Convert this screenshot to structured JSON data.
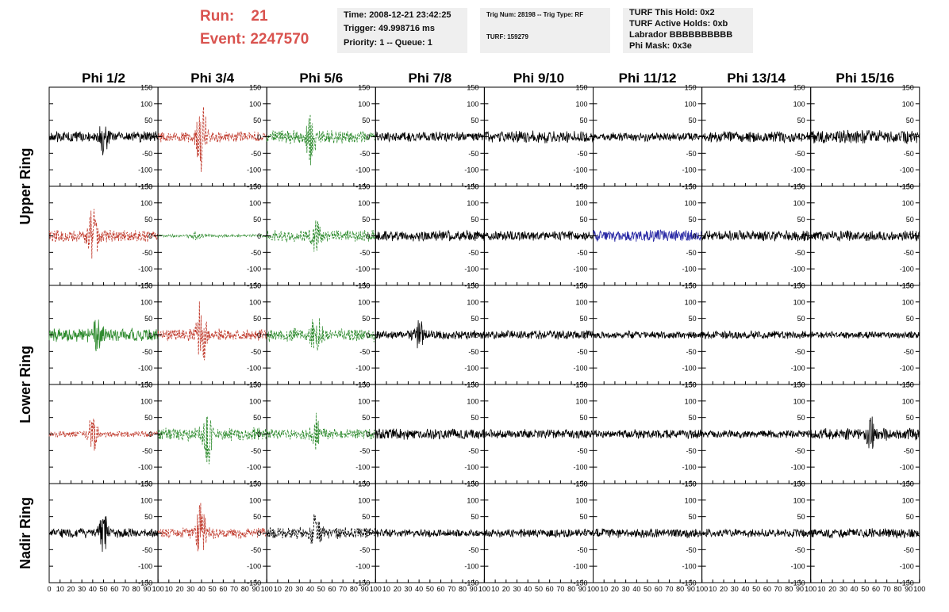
{
  "header": {
    "run_label": "Run:",
    "run_value": "21",
    "event_label": "Event:",
    "event_value": "2247570",
    "accent_color": "#d9534f",
    "time_line": "Time: 2008-12-21 23:42:25",
    "trigger_line": "Trigger: 49.998716 ms",
    "priority_line": "Priority: 1 -- Queue: 1",
    "trig_line": "Trig Num: 28198 -- Trig Type: RF",
    "turf_line": "TURF: 159279",
    "hold_line": "TURF This Hold: 0x2",
    "active_holds_line": "TURF Active Holds: 0xb",
    "labrador_line": "Labrador BBBBBBBBBB",
    "phi_mask_line": "Phi Mask: 0x3e"
  },
  "chart_data": {
    "type": "line",
    "columns": [
      "Phi 1/2",
      "Phi 3/4",
      "Phi 5/6",
      "Phi 7/8",
      "Phi 9/10",
      "Phi 11/12",
      "Phi 13/14",
      "Phi 15/16"
    ],
    "row_groups": [
      {
        "label": "Upper Ring",
        "rows": [
          0,
          1
        ]
      },
      {
        "label": "Lower Ring",
        "rows": [
          2,
          3
        ]
      },
      {
        "label": "Nadir Ring",
        "rows": [
          4
        ]
      }
    ],
    "xlim": [
      0,
      100
    ],
    "ylim": [
      -150,
      150
    ],
    "yticks": [
      -150,
      -100,
      -50,
      0,
      50,
      100,
      150
    ],
    "xticks": [
      0,
      10,
      20,
      30,
      40,
      50,
      60,
      70,
      80,
      90,
      100
    ],
    "colors": {
      "black": "#000000",
      "red": "#c0392b",
      "green": "#2e8b2e",
      "blue": "#2a2aa5"
    },
    "panels": [
      [
        {
          "color": "black",
          "dashed": false,
          "amp": 18,
          "burst_at": 50,
          "burst_amp": 55
        },
        {
          "color": "red",
          "dashed": true,
          "amp": 18,
          "burst_at": 40,
          "burst_amp": 120
        },
        {
          "color": "green",
          "dashed": true,
          "amp": 22,
          "burst_at": 40,
          "burst_amp": 85
        },
        {
          "color": "black",
          "dashed": false,
          "amp": 16,
          "burst_at": 0,
          "burst_amp": 0
        },
        {
          "color": "black",
          "dashed": false,
          "amp": 20,
          "burst_at": 0,
          "burst_amp": 0
        },
        {
          "color": "black",
          "dashed": false,
          "amp": 15,
          "burst_at": 0,
          "burst_amp": 0
        },
        {
          "color": "black",
          "dashed": false,
          "amp": 18,
          "burst_at": 0,
          "burst_amp": 0
        },
        {
          "color": "black",
          "dashed": false,
          "amp": 22,
          "burst_at": 0,
          "burst_amp": 0
        }
      ],
      [
        {
          "color": "red",
          "dashed": true,
          "amp": 20,
          "burst_at": 40,
          "burst_amp": 100
        },
        {
          "color": "green",
          "dashed": true,
          "amp": 5,
          "burst_at": 35,
          "burst_amp": 14
        },
        {
          "color": "green",
          "dashed": true,
          "amp": 20,
          "burst_at": 45,
          "burst_amp": 45
        },
        {
          "color": "black",
          "dashed": false,
          "amp": 18,
          "burst_at": 0,
          "burst_amp": 0
        },
        {
          "color": "black",
          "dashed": false,
          "amp": 16,
          "burst_at": 0,
          "burst_amp": 0
        },
        {
          "color": "blue",
          "dashed": false,
          "amp": 20,
          "burst_at": 0,
          "burst_amp": 0
        },
        {
          "color": "black",
          "dashed": false,
          "amp": 18,
          "burst_at": 0,
          "burst_amp": 0
        },
        {
          "color": "black",
          "dashed": false,
          "amp": 18,
          "burst_at": 0,
          "burst_amp": 0
        }
      ],
      [
        {
          "color": "green",
          "dashed": false,
          "amp": 22,
          "burst_at": 45,
          "burst_amp": 55
        },
        {
          "color": "red",
          "dashed": true,
          "amp": 20,
          "burst_at": 40,
          "burst_amp": 130
        },
        {
          "color": "green",
          "dashed": true,
          "amp": 22,
          "burst_at": 45,
          "burst_amp": 65
        },
        {
          "color": "black",
          "dashed": false,
          "amp": 15,
          "burst_at": 40,
          "burst_amp": 40
        },
        {
          "color": "black",
          "dashed": false,
          "amp": 15,
          "burst_at": 0,
          "burst_amp": 0
        },
        {
          "color": "black",
          "dashed": false,
          "amp": 12,
          "burst_at": 0,
          "burst_amp": 0
        },
        {
          "color": "black",
          "dashed": false,
          "amp": 14,
          "burst_at": 0,
          "burst_amp": 0
        },
        {
          "color": "black",
          "dashed": false,
          "amp": 12,
          "burst_at": 0,
          "burst_amp": 0
        }
      ],
      [
        {
          "color": "red",
          "dashed": true,
          "amp": 10,
          "burst_at": 40,
          "burst_amp": 70
        },
        {
          "color": "green",
          "dashed": true,
          "amp": 22,
          "burst_at": 45,
          "burst_amp": 110
        },
        {
          "color": "green",
          "dashed": true,
          "amp": 18,
          "burst_at": 45,
          "burst_amp": 50
        },
        {
          "color": "black",
          "dashed": false,
          "amp": 18,
          "burst_at": 0,
          "burst_amp": 0
        },
        {
          "color": "black",
          "dashed": false,
          "amp": 15,
          "burst_at": 0,
          "burst_amp": 0
        },
        {
          "color": "black",
          "dashed": false,
          "amp": 15,
          "burst_at": 0,
          "burst_amp": 0
        },
        {
          "color": "black",
          "dashed": false,
          "amp": 14,
          "burst_at": 0,
          "burst_amp": 0
        },
        {
          "color": "black",
          "dashed": false,
          "amp": 20,
          "burst_at": 55,
          "burst_amp": 45
        }
      ],
      [
        {
          "color": "black",
          "dashed": false,
          "amp": 16,
          "burst_at": 50,
          "burst_amp": 60
        },
        {
          "color": "red",
          "dashed": true,
          "amp": 18,
          "burst_at": 40,
          "burst_amp": 115
        },
        {
          "color": "black",
          "dashed": true,
          "amp": 20,
          "burst_at": 45,
          "burst_amp": 55
        },
        {
          "color": "black",
          "dashed": false,
          "amp": 14,
          "burst_at": 0,
          "burst_amp": 0
        },
        {
          "color": "black",
          "dashed": false,
          "amp": 14,
          "burst_at": 0,
          "burst_amp": 0
        },
        {
          "color": "black",
          "dashed": false,
          "amp": 16,
          "burst_at": 0,
          "burst_amp": 0
        },
        {
          "color": "black",
          "dashed": false,
          "amp": 14,
          "burst_at": 0,
          "burst_amp": 0
        },
        {
          "color": "black",
          "dashed": false,
          "amp": 16,
          "burst_at": 0,
          "burst_amp": 0
        }
      ]
    ]
  }
}
